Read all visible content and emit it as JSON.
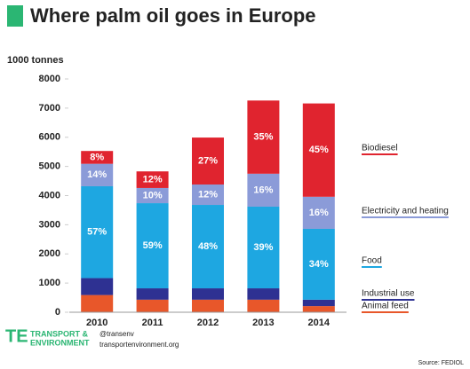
{
  "chart_data": {
    "type": "stacked-bar",
    "title": "Where palm oil goes in Europe",
    "y_label": "1000 tonnes",
    "categories": [
      "2010",
      "2011",
      "2012",
      "2013",
      "2014"
    ],
    "series": [
      {
        "name": "Animal feed",
        "color": "#e8572a",
        "values": [
          590,
          430,
          430,
          430,
          210
        ]
      },
      {
        "name": "Industrial use",
        "color": "#2e3192",
        "values": [
          580,
          390,
          390,
          390,
          220
        ]
      },
      {
        "name": "Food",
        "color": "#1ea7e1",
        "values": [
          3150,
          2920,
          2860,
          2800,
          2430
        ],
        "value_labels": [
          "57%",
          "59%",
          "48%",
          "39%",
          "34%"
        ]
      },
      {
        "name": "Electricity and heating",
        "color": "#8b9bd8",
        "values": [
          770,
          520,
          700,
          1130,
          1100
        ],
        "value_labels": [
          "14%",
          "10%",
          "12%",
          "16%",
          "16%"
        ]
      },
      {
        "name": "Biodiesel",
        "color": "#e0242f",
        "values": [
          440,
          570,
          1610,
          2510,
          3200
        ],
        "value_labels": [
          "8%",
          "12%",
          "27%",
          "35%",
          "45%"
        ]
      }
    ],
    "ylim": [
      0,
      8000
    ],
    "yticks": [
      0,
      1000,
      2000,
      3000,
      4000,
      5000,
      6000,
      7000,
      8000
    ],
    "grid": false
  },
  "footer": {
    "logo_line1": "TRANSPORT &",
    "logo_line2": "ENVIRONMENT",
    "twitter": "@transenv",
    "website": "transportenvironment.org",
    "source": "Source: FEDIOL"
  }
}
